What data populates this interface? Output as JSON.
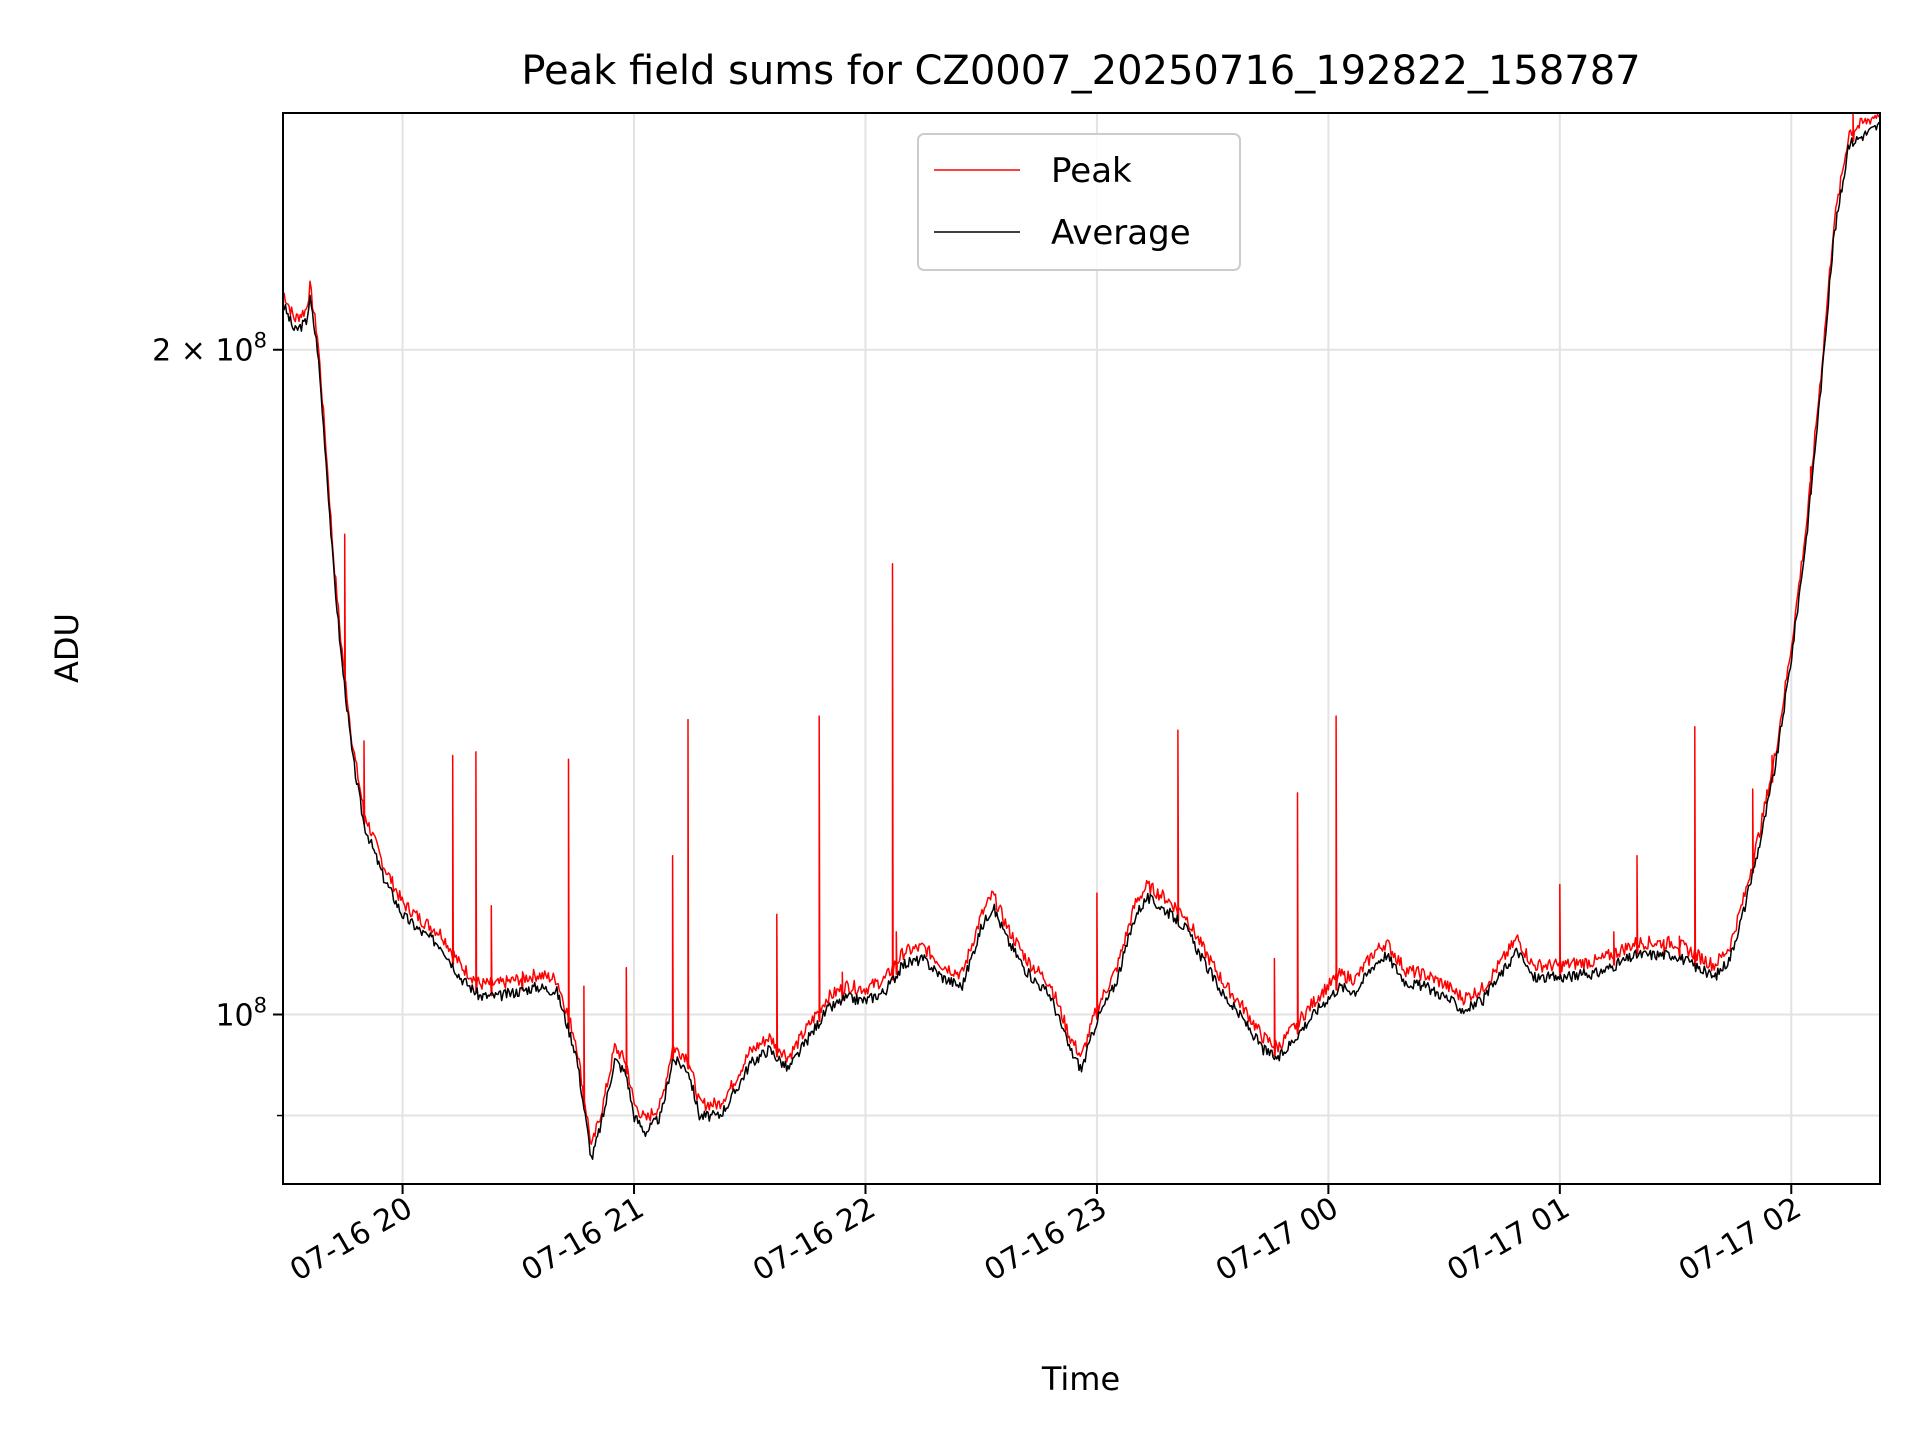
{
  "chart_data": {
    "type": "line",
    "title": "Peak field sums for CZ0007_20250716_192822_158787",
    "xlabel": "Time",
    "ylabel": "ADU",
    "y_scale": "log",
    "xlim": [
      "2025-07-16 19:29",
      "2025-07-17 02:23"
    ],
    "ylim": [
      83800000,
      256000000
    ],
    "grid": true,
    "legend_position": "top-center",
    "x_ticks": [
      {
        "t": "2025-07-16 20:00",
        "label": "07-16 20"
      },
      {
        "t": "2025-07-16 21:00",
        "label": "07-16 21"
      },
      {
        "t": "2025-07-16 22:00",
        "label": "07-16 22"
      },
      {
        "t": "2025-07-16 23:00",
        "label": "07-16 23"
      },
      {
        "t": "2025-07-17 00:00",
        "label": "07-17 00"
      },
      {
        "t": "2025-07-17 01:00",
        "label": "07-17 01"
      },
      {
        "t": "2025-07-17 02:00",
        "label": "07-17 02"
      }
    ],
    "y_ticks": [
      {
        "v": 100000000,
        "base": "10",
        "exp": "8",
        "mult": ""
      },
      {
        "v": 200000000,
        "base": "10",
        "exp": "8",
        "mult": "2 × "
      }
    ],
    "y_minor_ticks": [
      90000000
    ],
    "series": [
      {
        "name": "Average",
        "color": "#000000",
        "points": [
          [
            "2025-07-16 19:29",
            210000000
          ],
          [
            "2025-07-16 19:32",
            204000000
          ],
          [
            "2025-07-16 19:35",
            206000000
          ],
          [
            "2025-07-16 19:36",
            211000000
          ],
          [
            "2025-07-16 19:38",
            200000000
          ],
          [
            "2025-07-16 19:40",
            180000000
          ],
          [
            "2025-07-16 19:42",
            160000000
          ],
          [
            "2025-07-16 19:44",
            146000000
          ],
          [
            "2025-07-16 19:47",
            131000000
          ],
          [
            "2025-07-16 19:50",
            122000000
          ],
          [
            "2025-07-16 19:55",
            115500000
          ],
          [
            "2025-07-16 20:00",
            111000000
          ],
          [
            "2025-07-16 20:05",
            109000000
          ],
          [
            "2025-07-16 20:10",
            107500000
          ],
          [
            "2025-07-16 20:15",
            104000000
          ],
          [
            "2025-07-16 20:20",
            102000000
          ],
          [
            "2025-07-16 20:25",
            102000000
          ],
          [
            "2025-07-16 20:30",
            102500000
          ],
          [
            "2025-07-16 20:35",
            103000000
          ],
          [
            "2025-07-16 20:40",
            102500000
          ],
          [
            "2025-07-16 20:45",
            96000000
          ],
          [
            "2025-07-16 20:49",
            86000000
          ],
          [
            "2025-07-16 20:52",
            90000000
          ],
          [
            "2025-07-16 20:55",
            95500000
          ],
          [
            "2025-07-16 20:58",
            94000000
          ],
          [
            "2025-07-16 21:00",
            90000000
          ],
          [
            "2025-07-16 21:03",
            88500000
          ],
          [
            "2025-07-16 21:07",
            90000000
          ],
          [
            "2025-07-16 21:10",
            95500000
          ],
          [
            "2025-07-16 21:14",
            94500000
          ],
          [
            "2025-07-16 21:17",
            90000000
          ],
          [
            "2025-07-16 21:22",
            90000000
          ],
          [
            "2025-07-16 21:25",
            91500000
          ],
          [
            "2025-07-16 21:30",
            95000000
          ],
          [
            "2025-07-16 21:35",
            96500000
          ],
          [
            "2025-07-16 21:40",
            94500000
          ],
          [
            "2025-07-16 21:45",
            97500000
          ],
          [
            "2025-07-16 21:50",
            100500000
          ],
          [
            "2025-07-16 21:55",
            101800000
          ],
          [
            "2025-07-16 22:00",
            101500000
          ],
          [
            "2025-07-16 22:05",
            102500000
          ],
          [
            "2025-07-16 22:10",
            105500000
          ],
          [
            "2025-07-16 22:15",
            106000000
          ],
          [
            "2025-07-16 22:20",
            104000000
          ],
          [
            "2025-07-16 22:25",
            103000000
          ],
          [
            "2025-07-16 22:30",
            109500000
          ],
          [
            "2025-07-16 22:33",
            112000000
          ],
          [
            "2025-07-16 22:37",
            108000000
          ],
          [
            "2025-07-16 22:42",
            104500000
          ],
          [
            "2025-07-16 22:48",
            102000000
          ],
          [
            "2025-07-16 22:53",
            96500000
          ],
          [
            "2025-07-16 22:56",
            94500000
          ],
          [
            "2025-07-16 23:00",
            99500000
          ],
          [
            "2025-07-16 23:05",
            103500000
          ],
          [
            "2025-07-16 23:10",
            111000000
          ],
          [
            "2025-07-16 23:13",
            113000000
          ],
          [
            "2025-07-16 23:18",
            111500000
          ],
          [
            "2025-07-16 23:23",
            109500000
          ],
          [
            "2025-07-16 23:28",
            105500000
          ],
          [
            "2025-07-16 23:33",
            102000000
          ],
          [
            "2025-07-16 23:38",
            99500000
          ],
          [
            "2025-07-16 23:43",
            96500000
          ],
          [
            "2025-07-16 23:47",
            95500000
          ],
          [
            "2025-07-16 23:52",
            98000000
          ],
          [
            "2025-07-16 23:58",
            101000000
          ],
          [
            "2025-07-17 00:03",
            103000000
          ],
          [
            "2025-07-17 00:07",
            102500000
          ],
          [
            "2025-07-17 00:12",
            105500000
          ],
          [
            "2025-07-17 00:15",
            106500000
          ],
          [
            "2025-07-17 00:20",
            103500000
          ],
          [
            "2025-07-17 00:25",
            103000000
          ],
          [
            "2025-07-17 00:30",
            102000000
          ],
          [
            "2025-07-17 00:35",
            100500000
          ],
          [
            "2025-07-17 00:40",
            101500000
          ],
          [
            "2025-07-17 00:45",
            104500000
          ],
          [
            "2025-07-17 00:49",
            107000000
          ],
          [
            "2025-07-17 00:53",
            104000000
          ],
          [
            "2025-07-17 01:00",
            104000000
          ],
          [
            "2025-07-17 01:10",
            104500000
          ],
          [
            "2025-07-17 01:20",
            106500000
          ],
          [
            "2025-07-17 01:30",
            106500000
          ],
          [
            "2025-07-17 01:40",
            104000000
          ],
          [
            "2025-07-17 01:44",
            106000000
          ],
          [
            "2025-07-17 01:48",
            112000000
          ],
          [
            "2025-07-17 01:52",
            120000000
          ],
          [
            "2025-07-17 01:56",
            130000000
          ],
          [
            "2025-07-17 02:00",
            145000000
          ],
          [
            "2025-07-17 02:04",
            165000000
          ],
          [
            "2025-07-17 02:08",
            195000000
          ],
          [
            "2025-07-17 02:11",
            225000000
          ],
          [
            "2025-07-17 02:15",
            248000000
          ],
          [
            "2025-07-17 02:23",
            253000000
          ]
        ]
      },
      {
        "name": "Peak",
        "color": "#ff0000",
        "spikes": [
          [
            "2025-07-16 19:45",
            165000000
          ],
          [
            "2025-07-16 19:50",
            133000000
          ],
          [
            "2025-07-16 20:13",
            131000000
          ],
          [
            "2025-07-16 20:19",
            131500000
          ],
          [
            "2025-07-16 20:23",
            112000000
          ],
          [
            "2025-07-16 20:31",
            104000000
          ],
          [
            "2025-07-16 20:43",
            130500000
          ],
          [
            "2025-07-16 20:47",
            103000000
          ],
          [
            "2025-07-16 20:58",
            105000000
          ],
          [
            "2025-07-16 21:10",
            118000000
          ],
          [
            "2025-07-16 21:14",
            136000000
          ],
          [
            "2025-07-16 21:37",
            111000000
          ],
          [
            "2025-07-16 21:48",
            136500000
          ],
          [
            "2025-07-16 21:54",
            104500000
          ],
          [
            "2025-07-16 22:07",
            160000000
          ],
          [
            "2025-07-16 22:08",
            109000000
          ],
          [
            "2025-07-16 23:00",
            113500000
          ],
          [
            "2025-07-16 23:21",
            134500000
          ],
          [
            "2025-07-16 23:46",
            106000000
          ],
          [
            "2025-07-16 23:52",
            126000000
          ],
          [
            "2025-07-17 00:02",
            136500000
          ],
          [
            "2025-07-17 01:00",
            114500000
          ],
          [
            "2025-07-17 01:14",
            109000000
          ],
          [
            "2025-07-17 01:20",
            118000000
          ],
          [
            "2025-07-17 01:27",
            107500000
          ],
          [
            "2025-07-17 01:31",
            108500000
          ],
          [
            "2025-07-17 01:35",
            135000000
          ],
          [
            "2025-07-17 01:50",
            126500000
          ],
          [
            "2025-07-17 01:55",
            131000000
          ],
          [
            "2025-07-17 02:05",
            177000000
          ],
          [
            "2025-07-17 02:16",
            256000000
          ]
        ]
      }
    ]
  }
}
